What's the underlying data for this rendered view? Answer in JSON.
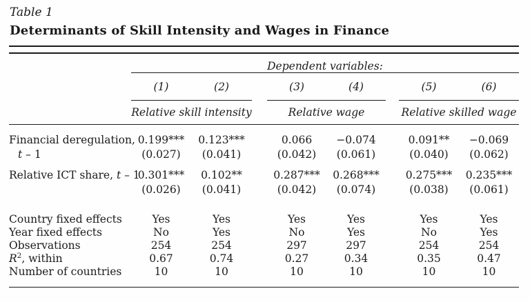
{
  "title": {
    "table_label": "Table 1",
    "heading": "Determinants of Skill Intensity and Wages in Finance"
  },
  "table": {
    "dep_header": "Dependent variables:",
    "column_numbers": [
      "(1)",
      "(2)",
      "(3)",
      "(4)",
      "(5)",
      "(6)"
    ],
    "groups": [
      {
        "label": "Relative skill intensity"
      },
      {
        "label": "Relative wage"
      },
      {
        "label": "Relative skilled wage"
      }
    ],
    "coef_rows": [
      {
        "name": "financial-deregulation",
        "label_line1": [
          {
            "t": "Financial deregulation,"
          }
        ],
        "label_line2": [
          {
            "t": "t",
            "i": true
          },
          {
            "t": " – 1"
          }
        ],
        "coefs": [
          "0.199***",
          "0.123***",
          "0.066",
          "−0.074",
          "0.091**",
          "−0.069"
        ],
        "ses": [
          "(0.027)",
          "(0.041)",
          "(0.042)",
          "(0.061)",
          "(0.040)",
          "(0.062)"
        ]
      },
      {
        "name": "relative-ict-share",
        "label_line1": [
          {
            "t": "Relative ICT share, "
          },
          {
            "t": "t",
            "i": true
          },
          {
            "t": " – 1"
          }
        ],
        "label_line2": [],
        "coefs": [
          "0.301***",
          "0.102**",
          "0.287***",
          "0.268***",
          "0.275***",
          "0.235***"
        ],
        "ses": [
          "(0.026)",
          "(0.041)",
          "(0.042)",
          "(0.074)",
          "(0.038)",
          "(0.061)"
        ]
      }
    ],
    "stat_rows": [
      {
        "name": "country-fixed-effects",
        "label": [
          {
            "t": "Country fixed effects"
          }
        ],
        "values": [
          "Yes",
          "Yes",
          "Yes",
          "Yes",
          "Yes",
          "Yes"
        ]
      },
      {
        "name": "year-fixed-effects",
        "label": [
          {
            "t": "Year fixed effects"
          }
        ],
        "values": [
          "No",
          "Yes",
          "No",
          "Yes",
          "No",
          "Yes"
        ]
      },
      {
        "name": "observations",
        "label": [
          {
            "t": "Observations"
          }
        ],
        "values": [
          "254",
          "254",
          "297",
          "297",
          "254",
          "254"
        ]
      },
      {
        "name": "r-squared-within",
        "label": [
          {
            "t": "R",
            "i": true
          },
          {
            "t": "2",
            "sup": true
          },
          {
            "t": ", within"
          }
        ],
        "values": [
          "0.67",
          "0.74",
          "0.27",
          "0.34",
          "0.35",
          "0.47"
        ]
      },
      {
        "name": "number-of-countries",
        "label": [
          {
            "t": "Number of countries"
          }
        ],
        "values": [
          "10",
          "10",
          "10",
          "10",
          "10",
          "10"
        ]
      }
    ]
  }
}
